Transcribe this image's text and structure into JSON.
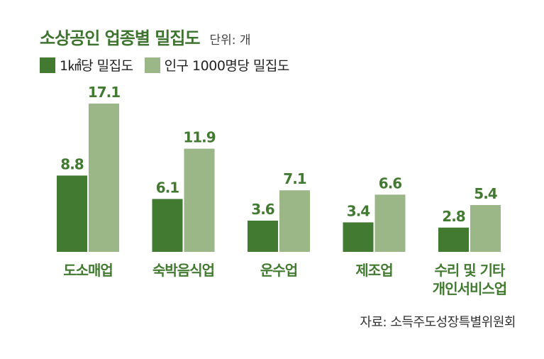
{
  "chart_data": {
    "type": "bar",
    "title": "소상공인 업종별 밀집도",
    "unit": "단위: 개",
    "categories": [
      "도소매업",
      "숙박음식업",
      "운수업",
      "제조업",
      "수리 및 기타\n개인서비스업"
    ],
    "series": [
      {
        "name": "1㎢당 밀집도",
        "values": [
          8.8,
          6.1,
          3.6,
          3.4,
          2.8
        ],
        "color": "#437a31"
      },
      {
        "name": "인구 1000명당 밀집도",
        "values": [
          17.1,
          11.9,
          7.1,
          6.6,
          5.4
        ],
        "color": "#9bb687"
      }
    ],
    "label_color": "#437a31",
    "ylim": [
      0,
      17.1
    ],
    "grid": false,
    "legend_position": "top-left"
  },
  "source": "자료: 소득주도성장특별위원회"
}
